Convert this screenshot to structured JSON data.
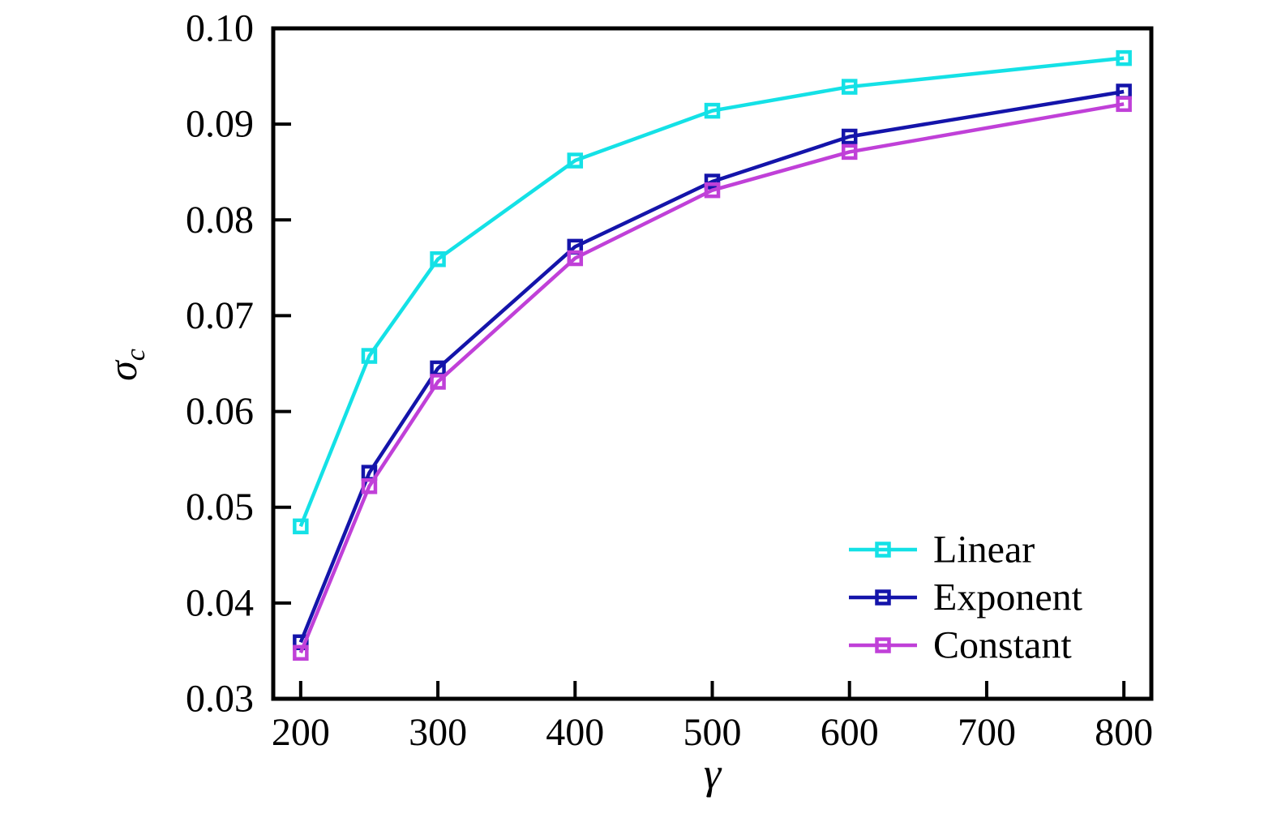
{
  "chart_data": {
    "type": "line",
    "title": "",
    "xlabel": "γ",
    "ylabel": "σ",
    "ylabel_subscript": "c",
    "x": [
      200,
      250,
      300,
      400,
      500,
      600,
      800
    ],
    "series": [
      {
        "name": "Linear",
        "color": "#14e1e6",
        "values": [
          0.048,
          0.0658,
          0.0759,
          0.0862,
          0.0914,
          0.0939,
          0.0969
        ]
      },
      {
        "name": "Exponent",
        "color": "#1414aa",
        "values": [
          0.0359,
          0.0536,
          0.0645,
          0.0772,
          0.084,
          0.0887,
          0.0934
        ]
      },
      {
        "name": "Constant",
        "color": "#c040d8",
        "values": [
          0.0348,
          0.0522,
          0.0631,
          0.076,
          0.0831,
          0.0871,
          0.0921
        ]
      }
    ],
    "marker": "open-square",
    "xlim": [
      180,
      820
    ],
    "ylim": [
      0.03,
      0.1
    ],
    "xticks": [
      200,
      300,
      400,
      500,
      600,
      700,
      800
    ],
    "xtick_labels": [
      "200",
      "300",
      "400",
      "500",
      "600",
      "700",
      "800"
    ],
    "yticks": [
      0.03,
      0.04,
      0.05,
      0.06,
      0.07,
      0.08,
      0.09,
      0.1
    ],
    "ytick_labels": [
      "0.03",
      "0.04",
      "0.05",
      "0.06",
      "0.07",
      "0.08",
      "0.09",
      "0.10"
    ],
    "grid": false,
    "legend_position": "lower right",
    "legend_entries": [
      "Linear",
      "Exponent",
      "Constant"
    ],
    "axis_color": "#000000",
    "text_color": "#000000",
    "background": "#ffffff"
  }
}
